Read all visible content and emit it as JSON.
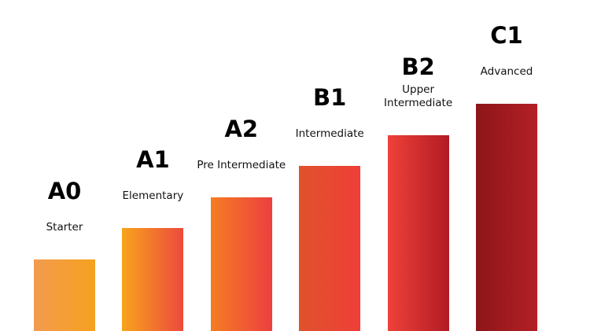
{
  "levels": [
    {
      "code": "A0",
      "name": "Starter"
    },
    {
      "code": "A1",
      "name": "Elementary"
    },
    {
      "code": "A2",
      "name": "Pre Intermediate"
    },
    {
      "code": "B1",
      "name": "Intermediate"
    },
    {
      "code": "B2",
      "name": "Upper Intermediate"
    },
    {
      "code": "C1",
      "name": "Advanced"
    }
  ]
}
